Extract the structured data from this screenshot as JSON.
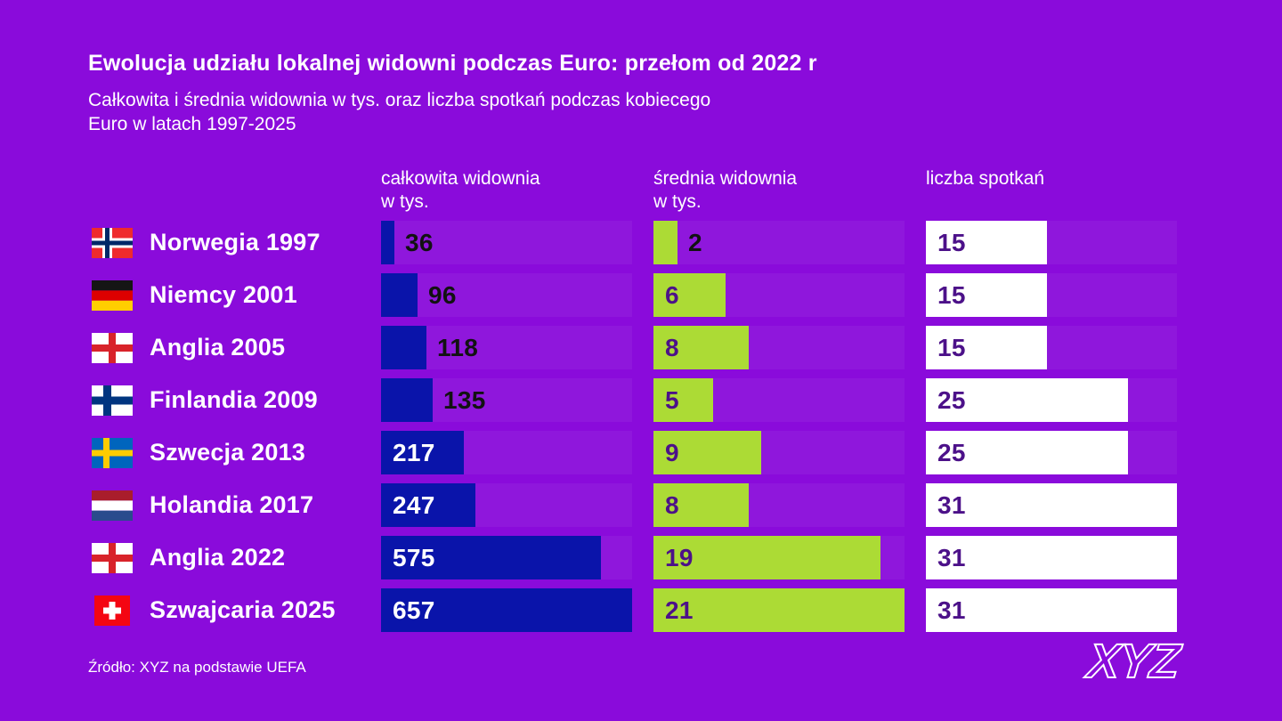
{
  "header": {
    "title": "Ewolucja udziału lokalnej widowni podczas Euro: przełom od 2022 r",
    "subtitle_lines": [
      "Całkowita i średnia widownia w tys. oraz liczba spotkań podczas kobiecego",
      "Euro w latach 1997-2025"
    ]
  },
  "columns": [
    {
      "line1": "całkowita widownia",
      "line2": "w tys."
    },
    {
      "line1": "średnia widownia",
      "line2": "w tys."
    },
    {
      "line1": "liczba spotkań",
      "line2": ""
    }
  ],
  "rows": [
    {
      "flag": "norway",
      "label": "Norwegia 1997",
      "total": 36,
      "avg": 2,
      "matches": 15
    },
    {
      "flag": "germany",
      "label": "Niemcy 2001",
      "total": 96,
      "avg": 6,
      "matches": 15
    },
    {
      "flag": "england",
      "label": "Anglia 2005",
      "total": 118,
      "avg": 8,
      "matches": 15
    },
    {
      "flag": "finland",
      "label": "Finlandia 2009",
      "total": 135,
      "avg": 5,
      "matches": 25
    },
    {
      "flag": "sweden",
      "label": "Szwecja 2013",
      "total": 217,
      "avg": 9,
      "matches": 25
    },
    {
      "flag": "netherlands",
      "label": "Holandia 2017",
      "total": 247,
      "avg": 8,
      "matches": 31
    },
    {
      "flag": "england",
      "label": "Anglia 2022",
      "total": 575,
      "avg": 19,
      "matches": 31
    },
    {
      "flag": "switzerland",
      "label": "Szwajcaria 2025",
      "total": 657,
      "avg": 21,
      "matches": 31
    }
  ],
  "footer": {
    "source": "Źródło: XYZ na podstawie UEFA",
    "logo": "XYZ"
  },
  "colors": {
    "background": "#8A0BDB",
    "bar_total": "#0A14AA",
    "bar_avg": "#ACDB35",
    "bar_matches": "#FFFFFF",
    "value_inside_light": "#FFFFFF",
    "value_inside_dark": "#4C1189",
    "value_outside": "#121212"
  },
  "chart_data": {
    "type": "bar",
    "orientation": "horizontal",
    "title": "Ewolucja udziału lokalnej widowni podczas Euro: przełom od 2022 r",
    "subtitle": "Całkowita i średnia widownia w tys. oraz liczba spotkań podczas kobiecego Euro w latach 1997-2025",
    "source": "Źródło: XYZ na podstawie UEFA",
    "categories": [
      "Norwegia 1997",
      "Niemcy 2001",
      "Anglia 2005",
      "Finlandia 2009",
      "Szwecja 2013",
      "Holandia 2017",
      "Anglia 2022",
      "Szwajcaria 2025"
    ],
    "series": [
      {
        "name": "całkowita widownia w tys.",
        "values": [
          36,
          96,
          118,
          135,
          217,
          247,
          575,
          657
        ],
        "color": "#0A14AA",
        "xlim": [
          0,
          657
        ]
      },
      {
        "name": "średnia widownia w tys.",
        "values": [
          2,
          6,
          8,
          5,
          9,
          8,
          19,
          21
        ],
        "color": "#ACDB35",
        "xlim": [
          0,
          21
        ]
      },
      {
        "name": "liczba spotkań",
        "values": [
          15,
          15,
          15,
          25,
          25,
          31,
          31,
          31
        ],
        "color": "#FFFFFF",
        "xlim": [
          0,
          31
        ]
      }
    ],
    "grid": false,
    "legend_position": "column-headers",
    "value_labels": true
  }
}
